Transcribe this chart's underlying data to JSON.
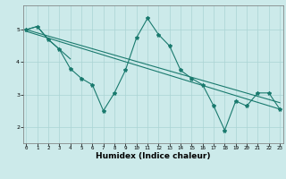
{
  "xlabel": "Humidex (Indice chaleur)",
  "x": [
    0,
    1,
    2,
    3,
    4,
    5,
    6,
    7,
    8,
    9,
    10,
    11,
    12,
    13,
    14,
    15,
    16,
    17,
    18,
    19,
    20,
    21,
    22,
    23
  ],
  "y_main": [
    5.0,
    5.1,
    4.7,
    4.4,
    3.8,
    3.5,
    3.3,
    2.5,
    3.05,
    3.75,
    4.75,
    5.35,
    4.85,
    4.5,
    3.75,
    3.5,
    3.3,
    2.65,
    1.9,
    2.8,
    2.65,
    3.05,
    3.05,
    2.55
  ],
  "y_upper_x": [
    0,
    1,
    2,
    3,
    4
  ],
  "y_upper_y": [
    5.0,
    5.1,
    4.7,
    4.4,
    4.1
  ],
  "trend1_x": [
    0,
    23
  ],
  "trend1_y": [
    5.0,
    2.75
  ],
  "trend2_x": [
    0,
    23
  ],
  "trend2_y": [
    4.95,
    2.55
  ],
  "color": "#1a7a6e",
  "bg_color": "#cceaea",
  "grid_color": "#aad4d4",
  "ylim": [
    1.5,
    5.75
  ],
  "xlim": [
    -0.3,
    23.3
  ],
  "yticks": [
    2,
    3,
    4,
    5
  ],
  "xticks": [
    0,
    1,
    2,
    3,
    4,
    5,
    6,
    7,
    8,
    9,
    10,
    11,
    12,
    13,
    14,
    15,
    16,
    17,
    18,
    19,
    20,
    21,
    22,
    23
  ],
  "xlabel_fontsize": 6.5,
  "tick_fontsize": 4.2
}
